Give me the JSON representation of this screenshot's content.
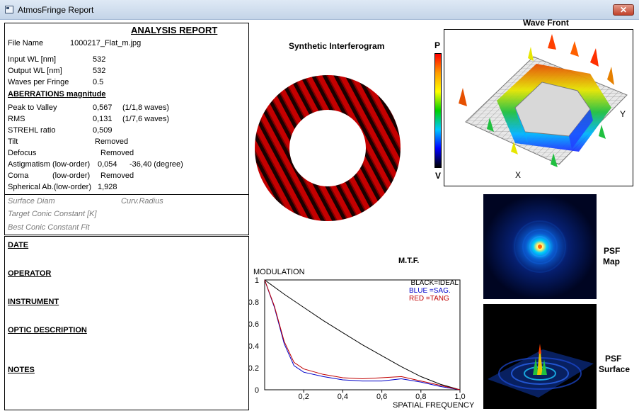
{
  "window": {
    "title": "AtmosFringe  Report",
    "close_label": "✕"
  },
  "report": {
    "title": "ANALYSIS  REPORT",
    "file_name_label": "File Name",
    "file_name_value": "1000217_Flat_m.jpg",
    "input_wl_label": "Input  WL [nm]",
    "input_wl_value": "532",
    "output_wl_label": "Output WL [nm]",
    "output_wl_value": "532",
    "waves_per_fringe_label": "Waves per Fringe",
    "waves_per_fringe_value": "0.5",
    "aberrations_header": "ABERRATIONS magnitude",
    "ptv_label": "Peak to Valley",
    "ptv_value": "0,567",
    "ptv_waves": "(1/1,8 waves)",
    "rms_label": "RMS",
    "rms_value": "0,131",
    "rms_waves": "(1/7,6 waves)",
    "strehl_label": "STREHL ratio",
    "strehl_value": "0,509",
    "tilt_label": "Tilt",
    "tilt_value": "Removed",
    "defocus_label": "Defocus",
    "defocus_value": "Removed",
    "astig_label": "Astigmatism  (low-order)",
    "astig_value": "0,054",
    "astig_angle": "-36,40  (degree)",
    "coma_label": "Coma",
    "coma_order": "(low-order)",
    "coma_value": "Removed",
    "spherical_label": "Spherical Ab.(low-order)",
    "spherical_value": "1,928",
    "surface_diam_label": "Surface Diam",
    "curv_radius_label": "Curv.Radius",
    "target_conic_label": "Target Conic Constant [K]",
    "best_conic_label": "Best Conic Constant Fit"
  },
  "notes_panel": {
    "date": "DATE",
    "operator": "OPERATOR",
    "instrument": "INSTRUMENT",
    "optic_description": "OPTIC DESCRIPTION",
    "notes": "NOTES"
  },
  "interferogram": {
    "title": "Synthetic Interferogram"
  },
  "wavefront": {
    "title": "Wave Front",
    "top_label": "P",
    "bottom_label": "V",
    "x_label": "X",
    "y_label": "Y"
  },
  "psf": {
    "map_label_1": "PSF",
    "map_label_2": "Map",
    "surface_label_1": "PSF",
    "surface_label_2": "Surface"
  },
  "mtf": {
    "title": "M.T.F.",
    "ylabel": "MODULATION",
    "xlabel": "SPATIAL FREQUENCY",
    "legend_black": "BLACK=IDEAL",
    "legend_blue": "BLUE  =SAG.",
    "legend_red": "RED   =TANG",
    "colors": {
      "ideal": "#000000",
      "sag": "#0000c8",
      "tang": "#c00000"
    }
  },
  "chart_data": {
    "type": "line",
    "title": "M.T.F.",
    "xlabel": "SPATIAL FREQUENCY",
    "ylabel": "MODULATION",
    "xlim": [
      0,
      1
    ],
    "ylim": [
      0,
      1
    ],
    "x_ticks": [
      "0,2",
      "0,4",
      "0,6",
      "0,8",
      "1,0"
    ],
    "y_ticks": [
      "0",
      "0.2",
      "0.4",
      "0.6",
      "0.8",
      "1"
    ],
    "series": [
      {
        "name": "IDEAL",
        "color": "#000000",
        "x": [
          0,
          0.1,
          0.2,
          0.3,
          0.4,
          0.5,
          0.6,
          0.7,
          0.8,
          0.9,
          1.0
        ],
        "y": [
          1.0,
          0.87,
          0.75,
          0.63,
          0.52,
          0.41,
          0.31,
          0.21,
          0.12,
          0.05,
          0.0
        ]
      },
      {
        "name": "SAG.",
        "color": "#0000c8",
        "x": [
          0,
          0.05,
          0.1,
          0.15,
          0.2,
          0.3,
          0.4,
          0.5,
          0.6,
          0.7,
          0.8,
          0.9,
          1.0
        ],
        "y": [
          1.0,
          0.75,
          0.42,
          0.22,
          0.16,
          0.12,
          0.09,
          0.08,
          0.08,
          0.1,
          0.07,
          0.03,
          0.0
        ]
      },
      {
        "name": "TANG",
        "color": "#c00000",
        "x": [
          0,
          0.05,
          0.1,
          0.15,
          0.2,
          0.3,
          0.4,
          0.5,
          0.6,
          0.7,
          0.8,
          0.9,
          1.0
        ],
        "y": [
          1.0,
          0.76,
          0.44,
          0.25,
          0.19,
          0.14,
          0.11,
          0.1,
          0.11,
          0.12,
          0.08,
          0.04,
          0.0
        ]
      }
    ]
  }
}
